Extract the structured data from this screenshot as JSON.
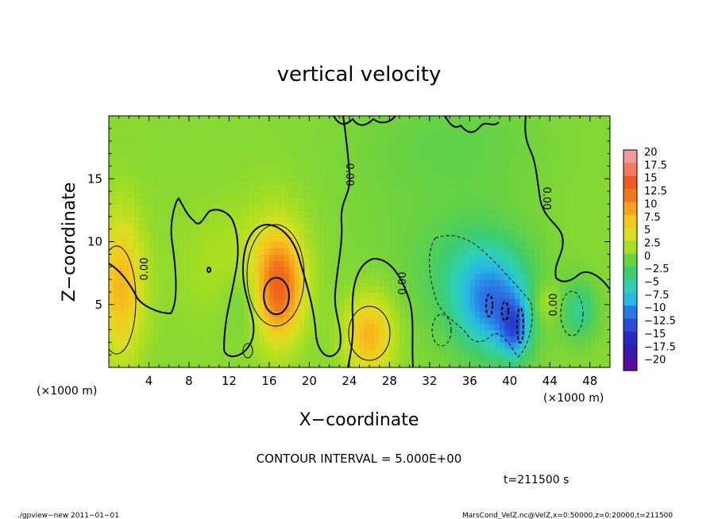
{
  "chart_data": {
    "type": "heatmap",
    "title": "vertical velocity",
    "xlabel": "X−coordinate",
    "ylabel": "Z−coordinate",
    "x_unit_label": "(×1000 m)",
    "x_unit_label_right": "(×1000 m)",
    "xlim": [
      0,
      50
    ],
    "ylim": [
      0,
      20
    ],
    "x_ticks": [
      "4",
      "8",
      "12",
      "16",
      "20",
      "24",
      "28",
      "32",
      "36",
      "40",
      "44",
      "48"
    ],
    "y_ticks": [
      "5",
      "10",
      "15"
    ],
    "x_tick_values": [
      4,
      8,
      12,
      16,
      20,
      24,
      28,
      32,
      36,
      40,
      44,
      48
    ],
    "y_tick_values": [
      5,
      10,
      15
    ],
    "contour_interval_text": "CONTOUR INTERVAL = 5.000E+00",
    "contour_label": "0.00",
    "time_text": "t=211500 s",
    "footer_left": "./gpview−new   2011−01−01",
    "footer_right": "MarsCond_VelZ.nc@VelZ,x=0:50000,z=0:20000,t=211500",
    "colorbar": {
      "labels": [
        "20",
        "17.5",
        "15",
        "12.5",
        "10",
        "7.5",
        "5",
        "2.5",
        "0",
        "−2.5",
        "−5",
        "−7.5",
        "−10",
        "−12.5",
        "−15",
        "−17.5",
        "−20"
      ],
      "colors": [
        "#f29a9a",
        "#f47a5e",
        "#f05a1e",
        "#f0781a",
        "#f4a21c",
        "#f4c81e",
        "#d8e020",
        "#a6de22",
        "#6ad240",
        "#3ecc6c",
        "#2ed0b4",
        "#28b8e6",
        "#2a7ae6",
        "#2a4ad8",
        "#2a2abe",
        "#3818a8",
        "#5a0ca0"
      ]
    },
    "blobs": [
      {
        "x": 1.2,
        "y": 6.5,
        "amp": 7.5,
        "sx": 1.6,
        "sy": 4.0
      },
      {
        "x": 17.0,
        "y": 6.2,
        "amp": 11.0,
        "sx": 1.6,
        "sy": 2.8
      },
      {
        "x": 16.5,
        "y": 8.5,
        "amp": 3.0,
        "sx": 2.5,
        "sy": 3.5
      },
      {
        "x": 26.0,
        "y": 2.6,
        "amp": 8.0,
        "sx": 1.7,
        "sy": 2.2
      },
      {
        "x": 11.0,
        "y": 8.0,
        "amp": 1.5,
        "sx": 3.0,
        "sy": 3.0
      },
      {
        "x": 43.5,
        "y": 5.2,
        "amp": 3.0,
        "sx": 1.0,
        "sy": 1.2
      },
      {
        "x": 38.5,
        "y": 4.8,
        "amp": -9.0,
        "sx": 2.6,
        "sy": 2.8
      },
      {
        "x": 36.5,
        "y": 7.5,
        "amp": -4.0,
        "sx": 3.5,
        "sy": 3.0
      },
      {
        "x": 40.5,
        "y": 3.0,
        "amp": -8.0,
        "sx": 1.0,
        "sy": 1.6
      },
      {
        "x": 47.0,
        "y": 4.5,
        "amp": -5.0,
        "sx": 1.2,
        "sy": 1.6
      },
      {
        "x": 13.5,
        "y": 5.5,
        "amp": -2.5,
        "sx": 1.5,
        "sy": 2.0
      },
      {
        "x": 32.0,
        "y": 12.0,
        "amp": -0.8,
        "sx": 8.0,
        "sy": 8.0
      },
      {
        "x": 35.0,
        "y": 18.0,
        "amp": -1.2,
        "sx": 6.0,
        "sy": 3.0
      }
    ]
  }
}
